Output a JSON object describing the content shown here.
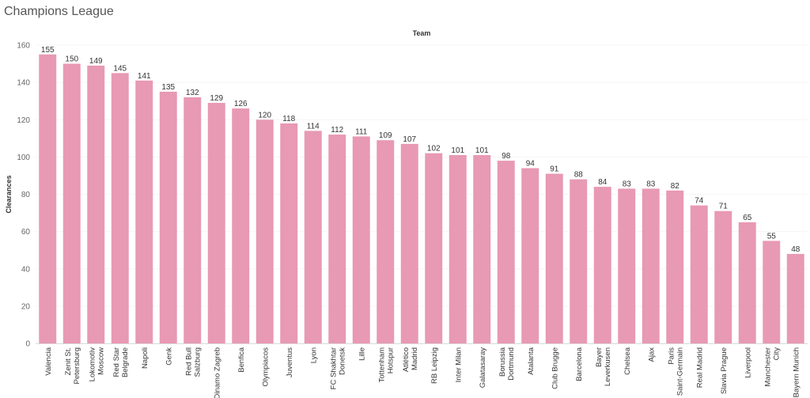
{
  "chart_data": {
    "type": "bar",
    "title": "Champions League",
    "top_label": "Team",
    "ylabel": "Clearances",
    "ylim": [
      0,
      160
    ],
    "yticks": [
      0,
      20,
      40,
      60,
      80,
      100,
      120,
      140,
      160
    ],
    "grid": true,
    "bar_color": "#e899b3",
    "categories": [
      [
        "Valencia"
      ],
      [
        "Zenit St.",
        "Petersburg"
      ],
      [
        "Lokomotiv",
        "Moscow"
      ],
      [
        "Red Star",
        "Belgrade"
      ],
      [
        "Napoli"
      ],
      [
        "Genk"
      ],
      [
        "Red Bull",
        "Salzburg"
      ],
      [
        "Dinamo Zagreb"
      ],
      [
        "Benfica"
      ],
      [
        "Olympiacos"
      ],
      [
        "Juventus"
      ],
      [
        "Lyon"
      ],
      [
        "FC Shakhtar",
        "Donetsk"
      ],
      [
        "Lille"
      ],
      [
        "Tottenham",
        "Hotspur"
      ],
      [
        "Atlético",
        "Madrid"
      ],
      [
        "RB Leipzig"
      ],
      [
        "Inter Milan"
      ],
      [
        "Galatasaray"
      ],
      [
        "Borussia",
        "Dortmund"
      ],
      [
        "Atalanta"
      ],
      [
        "Club Brugge"
      ],
      [
        "Barcelona"
      ],
      [
        "Bayer",
        "Leverkusen"
      ],
      [
        "Chelsea"
      ],
      [
        "Ajax"
      ],
      [
        "Paris",
        "Saint-Germain"
      ],
      [
        "Real Madrid"
      ],
      [
        "Slavia Prague"
      ],
      [
        "Liverpool"
      ],
      [
        "Manchester",
        "City"
      ],
      [
        "Bayern Munich"
      ]
    ],
    "values": [
      155,
      150,
      149,
      145,
      141,
      135,
      132,
      129,
      126,
      120,
      118,
      114,
      112,
      111,
      109,
      107,
      102,
      101,
      101,
      98,
      94,
      91,
      88,
      84,
      83,
      83,
      82,
      74,
      71,
      65,
      55,
      48
    ]
  }
}
